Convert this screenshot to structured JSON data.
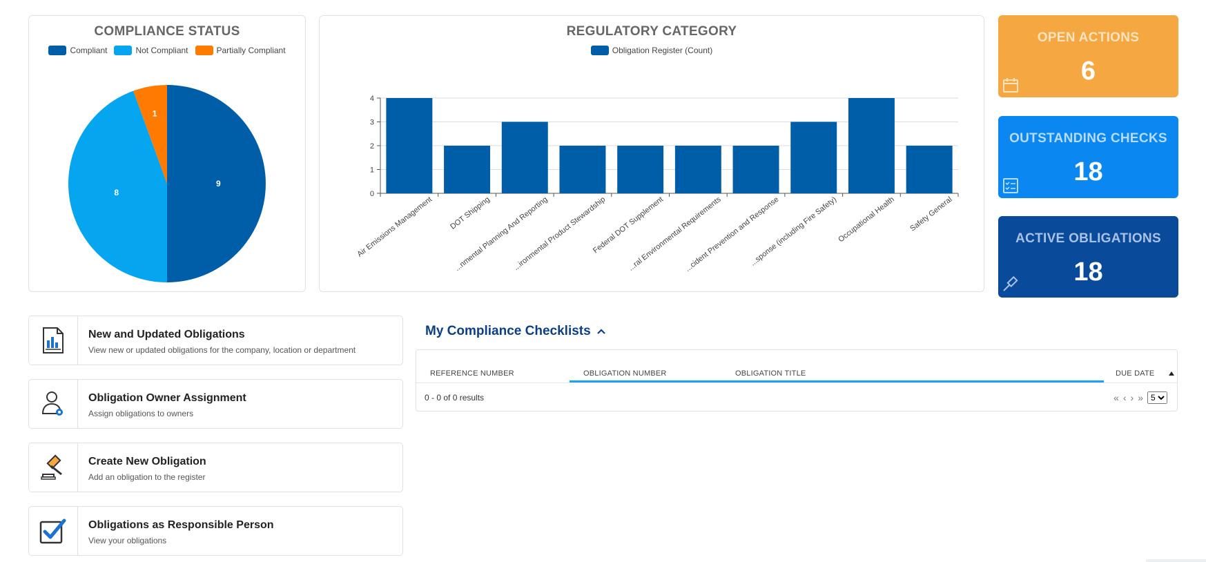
{
  "compliance_status": {
    "title": "COMPLIANCE STATUS",
    "legend": [
      {
        "label": "Compliant",
        "color": "#005ea8"
      },
      {
        "label": "Not Compliant",
        "color": "#05a5ef"
      },
      {
        "label": "Partially Compliant",
        "color": "#ff7a00"
      }
    ]
  },
  "regulatory_category": {
    "title": "REGULATORY CATEGORY",
    "legend_label": "Obligation Register (Count)",
    "bar_color": "#005ea8"
  },
  "chart_data": [
    {
      "type": "pie",
      "title": "COMPLIANCE STATUS",
      "categories": [
        "Compliant",
        "Not Compliant",
        "Partially Compliant"
      ],
      "values": [
        9,
        8,
        1
      ],
      "colors": [
        "#005ea8",
        "#05a5ef",
        "#ff7a00"
      ]
    },
    {
      "type": "bar",
      "title": "REGULATORY CATEGORY",
      "categories": [
        "Air Emissions Management",
        "DOT Shipping",
        "...nmental Planning And Reporting",
        "...ironmental Product Stewardship",
        "Federal DOT Supplement",
        "...ral Environmental Requirements",
        "...cident Prevention and Response",
        "...sponse (including Fire Safety)",
        "Occupational Health",
        "Safety General"
      ],
      "series": [
        {
          "name": "Obligation Register (Count)",
          "values": [
            4,
            2,
            3,
            2,
            2,
            2,
            2,
            3,
            4,
            2
          ]
        }
      ],
      "yticks": [
        "0",
        "1",
        "2",
        "3",
        "4"
      ],
      "ylim": [
        0,
        4
      ],
      "grid": true,
      "legend": "top"
    }
  ],
  "kpis": {
    "open_actions": {
      "title": "OPEN ACTIONS",
      "value": "6",
      "color": "#f5a742",
      "icon": "calendar-icon"
    },
    "outstanding_checks": {
      "title": "OUTSTANDING CHECKS",
      "value": "18",
      "color": "#0a87f0",
      "icon": "checklist-icon"
    },
    "active_obligations": {
      "title": "ACTIVE OBLIGATIONS",
      "value": "18",
      "color": "#0a4a9a",
      "icon": "gavel-icon"
    }
  },
  "actions": [
    {
      "title": "New and Updated Obligations",
      "desc": "View new or updated obligations for the company, location or department",
      "icon": "report-document-icon"
    },
    {
      "title": "Obligation Owner Assignment",
      "desc": "Assign obligations to owners",
      "icon": "user-settings-icon"
    },
    {
      "title": "Create New Obligation",
      "desc": "Add an obligation to the register",
      "icon": "gavel-icon"
    },
    {
      "title": "Obligations as Responsible Person",
      "desc": "View your obligations",
      "icon": "checkbox-icon"
    }
  ],
  "checklists": {
    "title": "My Compliance Checklists",
    "columns": [
      "REFERENCE NUMBER",
      "OBLIGATION NUMBER",
      "OBLIGATION TITLE",
      "DUE DATE"
    ],
    "results_text": "0 - 0 of 0 results",
    "page_size": "5"
  }
}
